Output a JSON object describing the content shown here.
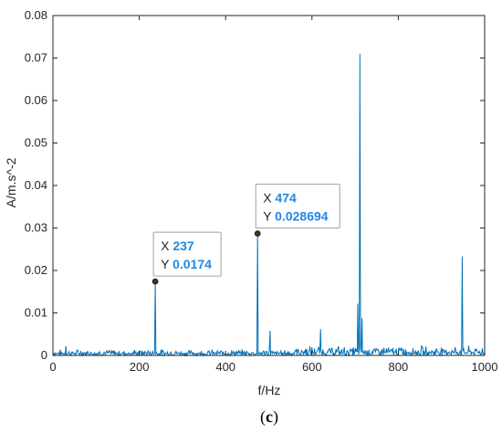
{
  "chart_data": {
    "type": "line",
    "xlabel": "f/Hz",
    "ylabel": "A/m.s^-2",
    "xlim": [
      0,
      1000
    ],
    "ylim": [
      0,
      0.08
    ],
    "xticks": [
      0,
      200,
      400,
      600,
      800,
      1000
    ],
    "xtick_labels": [
      "0",
      "200",
      "400",
      "600",
      "800",
      "1000"
    ],
    "yticks": [
      0,
      0.01,
      0.02,
      0.03,
      0.04,
      0.05,
      0.06,
      0.07,
      0.08
    ],
    "ytick_labels": [
      "0",
      "0.01",
      "0.02",
      "0.03",
      "0.04",
      "0.05",
      "0.06",
      "0.07",
      "0.08"
    ],
    "grid": false,
    "line_color": "#0072BD",
    "value_color": "#1E88E5",
    "baseline_noise_max": 0.0015,
    "peaks": [
      {
        "x": 30,
        "y": 0.0022
      },
      {
        "x": 237,
        "y": 0.0174
      },
      {
        "x": 474,
        "y": 0.028694
      },
      {
        "x": 503,
        "y": 0.0058
      },
      {
        "x": 620,
        "y": 0.0062
      },
      {
        "x": 706,
        "y": 0.0122
      },
      {
        "x": 711,
        "y": 0.071
      },
      {
        "x": 716,
        "y": 0.0088
      },
      {
        "x": 948,
        "y": 0.0233
      }
    ],
    "datatips": [
      {
        "x_label": "X",
        "y_label": "Y",
        "x": "237",
        "y": "0.0174",
        "x_value": 237,
        "y_value": 0.0174
      },
      {
        "x_label": "X",
        "y_label": "Y",
        "x": "474",
        "y": "0.028694",
        "x_value": 474,
        "y_value": 0.028694
      }
    ]
  },
  "caption": {
    "open": "(",
    "letter": "c",
    "close": ")"
  }
}
